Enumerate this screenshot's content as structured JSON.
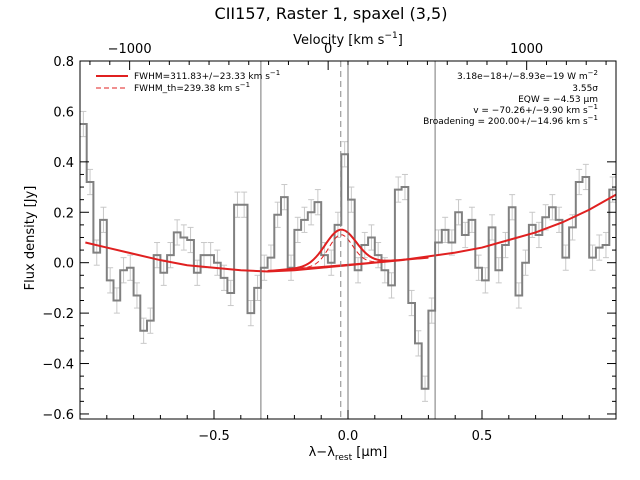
{
  "chart_data": {
    "type": "line",
    "title": "CII157, Raster 1, spaxel (3,5)",
    "xlabel": "λ−λ",
    "xlabel_sub": "rest",
    "xlabel_unit": " [μm]",
    "ylabel": "Flux density [Jy]",
    "top_xlabel": "Velocity [km s",
    "top_xlabel_sup": "−1",
    "top_xlabel_end": "]",
    "xlim": [
      -1.0,
      1.0
    ],
    "ylim": [
      -0.62,
      0.8
    ],
    "top_xlim": [
      -1250,
      1450
    ],
    "xticks": [
      -0.5,
      0.0,
      0.5
    ],
    "xtick_labels": [
      "−0.5",
      "0.0",
      "0.5"
    ],
    "yticks": [
      -0.6,
      -0.4,
      -0.2,
      0.0,
      0.2,
      0.4,
      0.6,
      0.8
    ],
    "ytick_labels": [
      "−0.6",
      "−0.4",
      "−0.2",
      "0.0",
      "0.2",
      "0.4",
      "0.6",
      "0.8"
    ],
    "top_xticks": [
      -1000,
      0,
      1000
    ],
    "top_xtick_labels": [
      "−1000",
      "0",
      "1000"
    ],
    "vlines": [
      -0.325,
      0.325
    ],
    "center_line": -0.027,
    "spectrum": {
      "color": "#808080",
      "bin_edges": [
        -1.0,
        -0.975,
        -0.95,
        -0.925,
        -0.9,
        -0.875,
        -0.85,
        -0.825,
        -0.8,
        -0.775,
        -0.75,
        -0.725,
        -0.7,
        -0.675,
        -0.65,
        -0.625,
        -0.6,
        -0.575,
        -0.55,
        -0.525,
        -0.5,
        -0.475,
        -0.45,
        -0.425,
        -0.4,
        -0.375,
        -0.35,
        -0.325,
        -0.3,
        -0.275,
        -0.25,
        -0.225,
        -0.2,
        -0.175,
        -0.15,
        -0.125,
        -0.1,
        -0.075,
        -0.05,
        -0.025,
        0.0,
        0.025,
        0.05,
        0.075,
        0.1,
        0.125,
        0.15,
        0.175,
        0.2,
        0.225,
        0.25,
        0.275,
        0.3,
        0.325,
        0.35,
        0.375,
        0.4,
        0.425,
        0.45,
        0.475,
        0.5,
        0.525,
        0.55,
        0.575,
        0.6,
        0.625,
        0.65,
        0.675,
        0.7,
        0.725,
        0.75,
        0.775,
        0.8,
        0.825,
        0.85,
        0.875,
        0.9,
        0.925,
        0.95,
        0.975,
        1.0
      ],
      "flux": [
        0.55,
        0.32,
        0.04,
        0.17,
        -0.07,
        -0.15,
        -0.03,
        -0.02,
        -0.13,
        -0.27,
        -0.23,
        0.03,
        -0.04,
        0.03,
        0.12,
        0.1,
        0.09,
        -0.04,
        0.03,
        0.03,
        0.0,
        -0.06,
        -0.12,
        0.23,
        0.23,
        -0.2,
        -0.1,
        -0.02,
        0.02,
        0.19,
        0.26,
        -0.02,
        0.13,
        0.17,
        0.2,
        0.24,
        0.03,
        0.0,
        0.15,
        0.43,
        0.25,
        -0.03,
        0.07,
        0.1,
        0.03,
        -0.03,
        -0.09,
        0.29,
        0.3,
        -0.16,
        -0.32,
        -0.5,
        -0.19,
        0.08,
        0.13,
        0.08,
        0.2,
        0.11,
        0.17,
        -0.02,
        -0.07,
        0.14,
        -0.03,
        0.07,
        0.22,
        -0.13,
        0.0,
        0.15,
        0.11,
        0.18,
        0.22,
        0.17,
        0.02,
        0.14,
        0.32,
        0.34,
        0.02,
        0.06,
        0.07,
        0.29
      ],
      "error": 0.05
    },
    "continuum": {
      "color": "#e02020",
      "x": [
        -0.98,
        -0.9,
        -0.8,
        -0.7,
        -0.6,
        -0.5,
        -0.4,
        -0.3,
        -0.2,
        -0.1,
        0.0,
        0.1,
        0.2,
        0.3,
        0.4,
        0.5,
        0.6,
        0.7,
        0.8,
        0.9,
        1.0
      ],
      "y": [
        0.08,
        0.06,
        0.035,
        0.01,
        -0.01,
        -0.02,
        -0.03,
        -0.035,
        -0.03,
        -0.02,
        -0.01,
        0.0,
        0.01,
        0.025,
        0.04,
        0.06,
        0.09,
        0.12,
        0.16,
        0.21,
        0.27
      ]
    },
    "baseline": {
      "color": "#e02020",
      "x": [
        -0.3,
        0.3
      ],
      "y": [
        -0.033,
        0.02
      ]
    },
    "fit_line": {
      "name": "FWHM=311.83+/−23.33 km s",
      "name_sup": "−1",
      "color": "#e02020",
      "center": -0.027,
      "amplitude": 0.14,
      "sigma": 0.058
    },
    "thermal_line": {
      "name": "FWHM_th=239.38 km s",
      "name_sup": "−1",
      "color": "#e02020",
      "center": -0.027,
      "amplitude": 0.12,
      "sigma": 0.044
    },
    "annotations": {
      "line1": "3.18e−18+/−8.93e−19 W m",
      "line1_sup": "−2",
      "line2": "3.55σ",
      "line3": "EQW = −4.53 μm",
      "line4": "v = −70.26+/−9.90 km s",
      "line4_sup": "−1",
      "line5": "Broadening = 200.00+/−14.96 km s",
      "line5_sup": "−1"
    }
  }
}
